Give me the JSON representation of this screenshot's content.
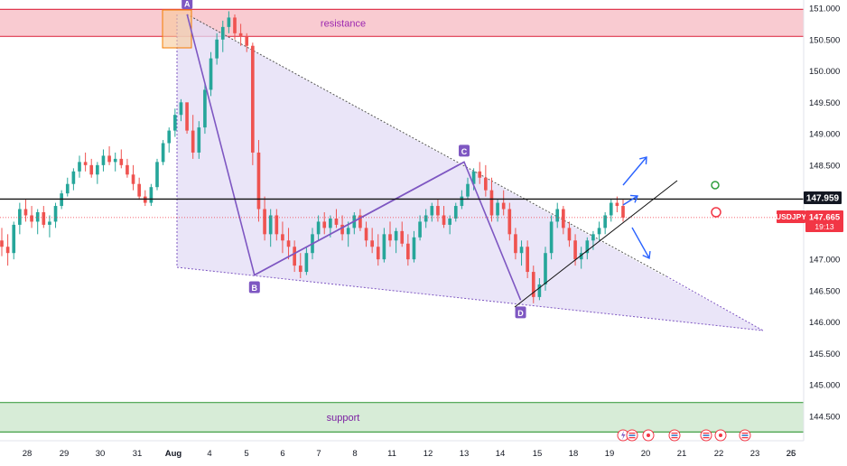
{
  "chart_data": {
    "type": "candlestick",
    "symbol": "USDJPY",
    "current_price": "147.665",
    "countdown": "19:13",
    "level_price": "147.959",
    "y_ticks": [
      "151.000",
      "150.500",
      "150.000",
      "149.500",
      "149.000",
      "148.500",
      "148.000",
      "147.500",
      "147.000",
      "146.500",
      "146.000",
      "145.500",
      "145.000",
      "144.500"
    ],
    "x_ticks": [
      "28",
      "29",
      "30",
      "31",
      "Aug",
      "4",
      "5",
      "6",
      "7",
      "8",
      "11",
      "12",
      "13",
      "14",
      "15",
      "18",
      "19",
      "20",
      "21",
      "22",
      "23",
      "25",
      "26"
    ],
    "ylim": [
      144.25,
      151.15
    ],
    "zones": [
      {
        "label": "resistance",
        "from": 150.55,
        "to": 150.98,
        "color": "#f7b9c2",
        "border": "#e0394f",
        "text_color": "#9c27b0"
      },
      {
        "label": "support",
        "from": 144.25,
        "to": 144.72,
        "color": "#c9e6c9",
        "border": "#43a047",
        "text_color": "#7b1fa2"
      }
    ],
    "pattern_points": [
      {
        "label": "A",
        "x_index": 4.38,
        "price": 150.9
      },
      {
        "label": "B",
        "x_index": 6.22,
        "price": 146.75
      },
      {
        "label": "C",
        "x_index": 12.0,
        "price": 148.55
      },
      {
        "label": "D",
        "x_index": 13.55,
        "price": 146.35
      }
    ],
    "horizontal_line": {
      "price": 147.959,
      "color": "#111111"
    },
    "current_line": {
      "price": 147.665,
      "color": "#f23645"
    },
    "colors": {
      "up": "#26a69a",
      "down": "#ef5350",
      "pattern": "#7e57c2",
      "triangle_fill": "#e3dcf5",
      "arrows": "#2962ff"
    },
    "candles": [
      [
        147.3,
        147.5,
        147.05,
        147.2
      ],
      [
        147.2,
        147.4,
        146.9,
        147.1
      ],
      [
        147.1,
        147.6,
        147.0,
        147.55
      ],
      [
        147.55,
        147.9,
        147.4,
        147.8
      ],
      [
        147.8,
        147.95,
        147.6,
        147.7
      ],
      [
        147.7,
        147.85,
        147.5,
        147.6
      ],
      [
        147.6,
        147.8,
        147.4,
        147.75
      ],
      [
        147.75,
        147.85,
        147.5,
        147.55
      ],
      [
        147.55,
        147.7,
        147.35,
        147.6
      ],
      [
        147.6,
        147.9,
        147.5,
        147.85
      ],
      [
        147.85,
        148.1,
        147.8,
        148.05
      ],
      [
        148.05,
        148.3,
        148.0,
        148.2
      ],
      [
        148.2,
        148.45,
        148.1,
        148.4
      ],
      [
        148.4,
        148.65,
        148.3,
        148.55
      ],
      [
        148.55,
        148.7,
        148.4,
        148.5
      ],
      [
        148.5,
        148.6,
        148.3,
        148.35
      ],
      [
        148.35,
        148.55,
        148.2,
        148.5
      ],
      [
        148.5,
        148.75,
        148.4,
        148.65
      ],
      [
        148.65,
        148.8,
        148.5,
        148.55
      ],
      [
        148.55,
        148.7,
        148.4,
        148.6
      ],
      [
        148.6,
        148.75,
        148.45,
        148.5
      ],
      [
        148.5,
        148.6,
        148.3,
        148.35
      ],
      [
        148.35,
        148.5,
        148.1,
        148.2
      ],
      [
        148.2,
        148.3,
        147.95,
        148.0
      ],
      [
        148.0,
        148.1,
        147.85,
        147.9
      ],
      [
        147.9,
        148.2,
        147.85,
        148.15
      ],
      [
        148.15,
        148.6,
        148.1,
        148.55
      ],
      [
        148.55,
        148.9,
        148.5,
        148.85
      ],
      [
        148.85,
        149.1,
        148.7,
        149.05
      ],
      [
        149.05,
        149.4,
        148.95,
        149.3
      ],
      [
        149.3,
        149.55,
        149.2,
        149.5
      ],
      [
        149.5,
        149.45,
        149.0,
        149.05
      ],
      [
        149.05,
        149.3,
        148.6,
        148.7
      ],
      [
        148.7,
        149.2,
        148.6,
        149.1
      ],
      [
        149.1,
        149.8,
        149.0,
        149.7
      ],
      [
        149.7,
        150.3,
        149.6,
        150.2
      ],
      [
        150.2,
        150.6,
        150.1,
        150.5
      ],
      [
        150.5,
        150.8,
        150.3,
        150.7
      ],
      [
        150.7,
        150.95,
        150.6,
        150.85
      ],
      [
        150.85,
        150.9,
        150.5,
        150.6
      ],
      [
        150.6,
        150.75,
        150.4,
        150.55
      ],
      [
        150.55,
        150.6,
        150.3,
        150.4
      ],
      [
        150.4,
        150.45,
        148.5,
        148.7
      ],
      [
        148.7,
        148.9,
        147.6,
        147.8
      ],
      [
        147.8,
        148.0,
        147.3,
        147.4
      ],
      [
        147.4,
        147.8,
        147.2,
        147.7
      ],
      [
        147.7,
        147.8,
        147.3,
        147.4
      ],
      [
        147.4,
        147.6,
        147.1,
        147.3
      ],
      [
        147.3,
        147.5,
        147.0,
        147.2
      ],
      [
        147.2,
        147.3,
        146.8,
        146.9
      ],
      [
        146.9,
        147.1,
        146.7,
        146.8
      ],
      [
        146.8,
        147.2,
        146.75,
        147.1
      ],
      [
        147.1,
        147.5,
        147.0,
        147.4
      ],
      [
        147.4,
        147.7,
        147.3,
        147.6
      ],
      [
        147.6,
        147.75,
        147.4,
        147.5
      ],
      [
        147.5,
        147.7,
        147.35,
        147.65
      ],
      [
        147.65,
        147.8,
        147.5,
        147.55
      ],
      [
        147.55,
        147.7,
        147.3,
        147.4
      ],
      [
        147.4,
        147.6,
        147.2,
        147.5
      ],
      [
        147.5,
        147.75,
        147.4,
        147.7
      ],
      [
        147.7,
        147.8,
        147.45,
        147.5
      ],
      [
        147.5,
        147.6,
        147.2,
        147.3
      ],
      [
        147.3,
        147.5,
        147.1,
        147.2
      ],
      [
        147.2,
        147.4,
        146.9,
        147.0
      ],
      [
        147.0,
        147.5,
        146.95,
        147.4
      ],
      [
        147.4,
        147.6,
        147.2,
        147.3
      ],
      [
        147.3,
        147.5,
        147.1,
        147.45
      ],
      [
        147.45,
        147.6,
        147.2,
        147.25
      ],
      [
        147.25,
        147.4,
        146.9,
        147.0
      ],
      [
        147.0,
        147.45,
        146.95,
        147.35
      ],
      [
        147.35,
        147.7,
        147.3,
        147.6
      ],
      [
        147.6,
        147.8,
        147.5,
        147.7
      ],
      [
        147.7,
        147.9,
        147.6,
        147.85
      ],
      [
        147.85,
        147.95,
        147.6,
        147.7
      ],
      [
        147.7,
        147.85,
        147.5,
        147.55
      ],
      [
        147.55,
        147.7,
        147.4,
        147.65
      ],
      [
        147.65,
        147.9,
        147.6,
        147.85
      ],
      [
        147.85,
        148.1,
        147.8,
        148.0
      ],
      [
        148.0,
        148.3,
        147.95,
        148.2
      ],
      [
        148.2,
        148.45,
        148.1,
        148.4
      ],
      [
        148.4,
        148.55,
        148.2,
        148.3
      ],
      [
        148.3,
        148.5,
        148.0,
        148.1
      ],
      [
        148.1,
        148.3,
        147.6,
        147.7
      ],
      [
        147.7,
        147.95,
        147.6,
        147.9
      ],
      [
        147.9,
        148.1,
        147.7,
        147.8
      ],
      [
        147.8,
        147.9,
        147.3,
        147.4
      ],
      [
        147.4,
        147.5,
        147.0,
        147.1
      ],
      [
        147.1,
        147.3,
        146.9,
        147.2
      ],
      [
        147.2,
        147.3,
        146.7,
        146.8
      ],
      [
        146.8,
        146.9,
        146.3,
        146.4
      ],
      [
        146.4,
        146.7,
        146.35,
        146.6
      ],
      [
        146.6,
        147.2,
        146.5,
        147.1
      ],
      [
        147.1,
        147.7,
        147.0,
        147.6
      ],
      [
        147.6,
        147.9,
        147.5,
        147.8
      ],
      [
        147.8,
        147.85,
        147.4,
        147.5
      ],
      [
        147.5,
        147.6,
        147.2,
        147.3
      ],
      [
        147.3,
        147.4,
        146.9,
        147.0
      ],
      [
        147.0,
        147.2,
        146.85,
        147.1
      ],
      [
        147.1,
        147.35,
        147.0,
        147.3
      ],
      [
        147.3,
        147.45,
        147.15,
        147.4
      ],
      [
        147.4,
        147.6,
        147.3,
        147.5
      ],
      [
        147.5,
        147.75,
        147.4,
        147.7
      ],
      [
        147.7,
        147.95,
        147.6,
        147.9
      ],
      [
        147.9,
        148.0,
        147.75,
        147.85
      ],
      [
        147.85,
        147.95,
        147.6,
        147.665
      ]
    ],
    "grid": false
  }
}
